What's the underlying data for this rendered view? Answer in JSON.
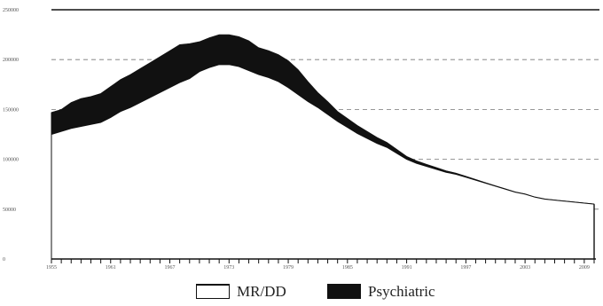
{
  "chart_data": {
    "type": "area",
    "stacked": true,
    "x": [
      1955,
      1956,
      1957,
      1958,
      1959,
      1960,
      1961,
      1962,
      1963,
      1964,
      1965,
      1966,
      1967,
      1968,
      1969,
      1970,
      1971,
      1972,
      1973,
      1974,
      1975,
      1976,
      1977,
      1978,
      1979,
      1980,
      1981,
      1982,
      1983,
      1984,
      1985,
      1986,
      1987,
      1988,
      1989,
      1990,
      1991,
      1992,
      1993,
      1994,
      1995,
      1996,
      1997,
      1998,
      1999,
      2000,
      2001,
      2002,
      2003,
      2004,
      2005,
      2006,
      2007,
      2008,
      2009,
      2010
    ],
    "x_ticks": [
      {
        "value": 1955,
        "label": "1955"
      },
      {
        "value": 1961,
        "label": "1961"
      },
      {
        "value": 1967,
        "label": "1967"
      },
      {
        "value": 1973,
        "label": "1973"
      },
      {
        "value": 1979,
        "label": "1979"
      },
      {
        "value": 1985,
        "label": "1985"
      },
      {
        "value": 1991,
        "label": "1991"
      },
      {
        "value": 1997,
        "label": "1997"
      },
      {
        "value": 2003,
        "label": "2003"
      },
      {
        "value": 2009,
        "label": "2009"
      }
    ],
    "y_ticks": [
      {
        "value": 0,
        "label": "0"
      },
      {
        "value": 50000,
        "label": "50000"
      },
      {
        "value": 100000,
        "label": "100000"
      },
      {
        "value": 150000,
        "label": "150000"
      },
      {
        "value": 200000,
        "label": "200000"
      },
      {
        "value": 250000,
        "label": "250000"
      }
    ],
    "ylim": [
      0,
      250000
    ],
    "grid": true,
    "legend_position": "bottom",
    "series": [
      {
        "name": "MR/DD",
        "color": "#ffffff",
        "values": [
          125000,
          128000,
          131000,
          133000,
          135000,
          137000,
          142000,
          148000,
          152000,
          157000,
          162000,
          167000,
          172000,
          177000,
          181000,
          188000,
          192000,
          195000,
          195000,
          193000,
          189000,
          185000,
          182000,
          178000,
          172000,
          165000,
          158000,
          152000,
          145000,
          138000,
          132000,
          126000,
          121000,
          116000,
          112000,
          106000,
          100000,
          96000,
          93000,
          90000,
          87000,
          85000,
          82000,
          79000,
          76000,
          73000,
          70000,
          67000,
          65000,
          62000,
          60000,
          59000,
          58000,
          57000,
          56000,
          55000
        ]
      },
      {
        "name": "Psychiatric",
        "color": "#111111",
        "values": [
          22000,
          22000,
          26000,
          28000,
          28000,
          29000,
          31000,
          32000,
          33000,
          34000,
          35000,
          36000,
          37000,
          38000,
          35000,
          30000,
          30000,
          30000,
          30000,
          30000,
          30000,
          27000,
          27000,
          27000,
          27000,
          25000,
          20000,
          15000,
          13000,
          10000,
          9000,
          8000,
          7000,
          6000,
          5000,
          4000,
          3000,
          2500,
          2000,
          1800,
          1500,
          1200,
          1000,
          800,
          600,
          500,
          500,
          400,
          300,
          300,
          300,
          200,
          200,
          200,
          200,
          200
        ]
      }
    ]
  }
}
